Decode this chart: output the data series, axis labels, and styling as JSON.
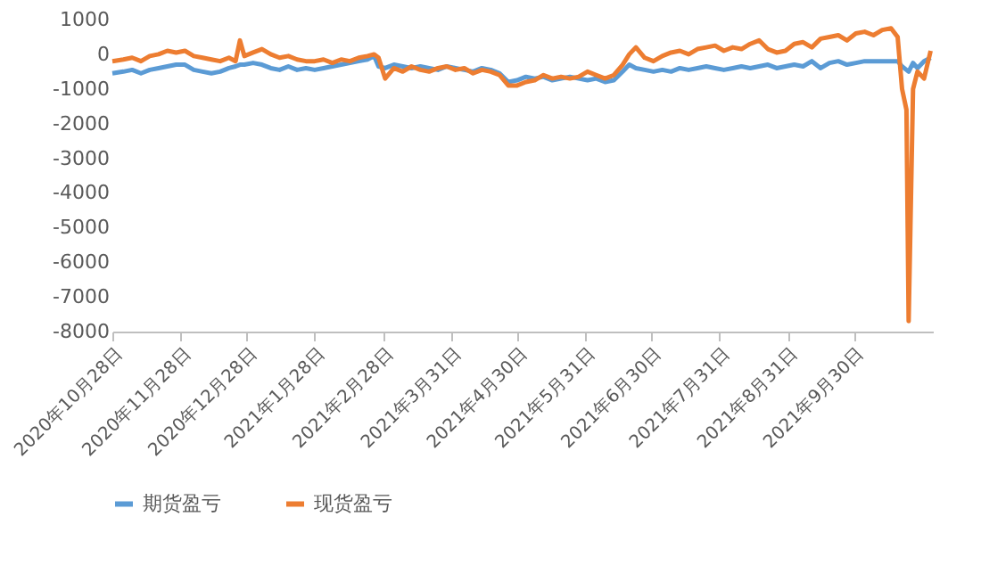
{
  "chart_data": {
    "type": "line",
    "x": [
      "2020-10-28",
      "2020-11-02",
      "2020-11-06",
      "2020-11-10",
      "2020-11-14",
      "2020-11-18",
      "2020-11-22",
      "2020-11-26",
      "2020-11-30",
      "2020-12-04",
      "2020-12-08",
      "2020-12-12",
      "2020-12-16",
      "2020-12-20",
      "2020-12-23",
      "2020-12-25",
      "2020-12-27",
      "2020-12-31",
      "2021-01-04",
      "2021-01-08",
      "2021-01-12",
      "2021-01-16",
      "2021-01-20",
      "2021-01-24",
      "2021-01-28",
      "2021-02-01",
      "2021-02-05",
      "2021-02-09",
      "2021-02-13",
      "2021-02-17",
      "2021-02-21",
      "2021-02-24",
      "2021-02-26",
      "2021-03-01",
      "2021-03-05",
      "2021-03-09",
      "2021-03-13",
      "2021-03-17",
      "2021-03-21",
      "2021-03-25",
      "2021-03-29",
      "2021-04-02",
      "2021-04-06",
      "2021-04-10",
      "2021-04-14",
      "2021-04-18",
      "2021-04-22",
      "2021-04-26",
      "2021-04-30",
      "2021-05-04",
      "2021-05-08",
      "2021-05-12",
      "2021-05-16",
      "2021-05-20",
      "2021-05-24",
      "2021-05-28",
      "2021-06-01",
      "2021-06-05",
      "2021-06-09",
      "2021-06-13",
      "2021-06-17",
      "2021-06-20",
      "2021-06-23",
      "2021-06-27",
      "2021-07-01",
      "2021-07-05",
      "2021-07-09",
      "2021-07-13",
      "2021-07-17",
      "2021-07-21",
      "2021-07-25",
      "2021-07-29",
      "2021-08-02",
      "2021-08-06",
      "2021-08-10",
      "2021-08-14",
      "2021-08-18",
      "2021-08-22",
      "2021-08-26",
      "2021-08-30",
      "2021-09-03",
      "2021-09-07",
      "2021-09-11",
      "2021-09-15",
      "2021-09-19",
      "2021-09-23",
      "2021-09-27",
      "2021-10-01",
      "2021-10-05",
      "2021-10-09",
      "2021-10-13",
      "2021-10-17",
      "2021-10-20",
      "2021-10-22",
      "2021-10-24",
      "2021-10-25",
      "2021-10-27",
      "2021-10-29",
      "2021-11-01",
      "2021-11-04"
    ],
    "series": [
      {
        "name": "期货盈亏",
        "color": "#5b9bd5",
        "values": [
          -550,
          -500,
          -450,
          -550,
          -450,
          -400,
          -350,
          -300,
          -300,
          -450,
          -500,
          -550,
          -500,
          -400,
          -350,
          -300,
          -300,
          -250,
          -300,
          -400,
          -450,
          -350,
          -450,
          -400,
          -450,
          -400,
          -350,
          -300,
          -250,
          -200,
          -150,
          -50,
          -350,
          -400,
          -300,
          -350,
          -400,
          -350,
          -400,
          -450,
          -350,
          -400,
          -450,
          -500,
          -400,
          -450,
          -550,
          -800,
          -750,
          -650,
          -700,
          -650,
          -750,
          -700,
          -650,
          -700,
          -750,
          -700,
          -800,
          -750,
          -500,
          -300,
          -400,
          -450,
          -500,
          -450,
          -500,
          -400,
          -450,
          -400,
          -350,
          -400,
          -450,
          -400,
          -350,
          -400,
          -350,
          -300,
          -400,
          -350,
          -300,
          -350,
          -200,
          -400,
          -250,
          -200,
          -300,
          -250,
          -200,
          -200,
          -200,
          -200,
          -200,
          -350,
          -450,
          -500,
          -250,
          -400,
          -200,
          -100
        ]
      },
      {
        "name": "现货盈亏",
        "color": "#ed7d31",
        "values": [
          -200,
          -150,
          -100,
          -200,
          -50,
          0,
          100,
          50,
          100,
          -50,
          -100,
          -150,
          -200,
          -100,
          -200,
          400,
          -50,
          50,
          150,
          0,
          -100,
          -50,
          -150,
          -200,
          -200,
          -150,
          -250,
          -150,
          -200,
          -100,
          -50,
          0,
          -100,
          -700,
          -400,
          -500,
          -350,
          -450,
          -500,
          -400,
          -350,
          -450,
          -400,
          -550,
          -450,
          -500,
          -600,
          -900,
          -900,
          -800,
          -750,
          -600,
          -700,
          -650,
          -700,
          -650,
          -500,
          -600,
          -700,
          -600,
          -300,
          0,
          200,
          -100,
          -200,
          -50,
          50,
          100,
          0,
          150,
          200,
          250,
          100,
          200,
          150,
          300,
          400,
          150,
          50,
          100,
          300,
          350,
          200,
          450,
          500,
          550,
          400,
          600,
          650,
          550,
          700,
          750,
          500,
          -1000,
          -1600,
          -7700,
          -1000,
          -500,
          -700,
          100
        ]
      }
    ],
    "xlim": [
      "2020-10-28",
      "2021-11-05"
    ],
    "xticks": [
      {
        "value": "2020-10-28",
        "label": "2020年10月28日"
      },
      {
        "value": "2020-11-28",
        "label": "2020年11月28日"
      },
      {
        "value": "2020-12-28",
        "label": "2020年12月28日"
      },
      {
        "value": "2021-01-28",
        "label": "2021年1月28日"
      },
      {
        "value": "2021-02-28",
        "label": "2021年2月28日"
      },
      {
        "value": "2021-03-31",
        "label": "2021年3月31日"
      },
      {
        "value": "2021-04-30",
        "label": "2021年4月30日"
      },
      {
        "value": "2021-05-31",
        "label": "2021年5月31日"
      },
      {
        "value": "2021-06-30",
        "label": "2021年6月30日"
      },
      {
        "value": "2021-07-31",
        "label": "2021年7月31日"
      },
      {
        "value": "2021-08-31",
        "label": "2021年8月31日"
      },
      {
        "value": "2021-09-30",
        "label": "2021年9月30日"
      }
    ],
    "ylim": [
      -8000,
      1000
    ],
    "yticks": [
      -8000,
      -7000,
      -6000,
      -5000,
      -4000,
      -3000,
      -2000,
      -1000,
      0,
      1000
    ],
    "grid": false,
    "legend": "bottom",
    "marker": "none",
    "line_style": "solid"
  }
}
